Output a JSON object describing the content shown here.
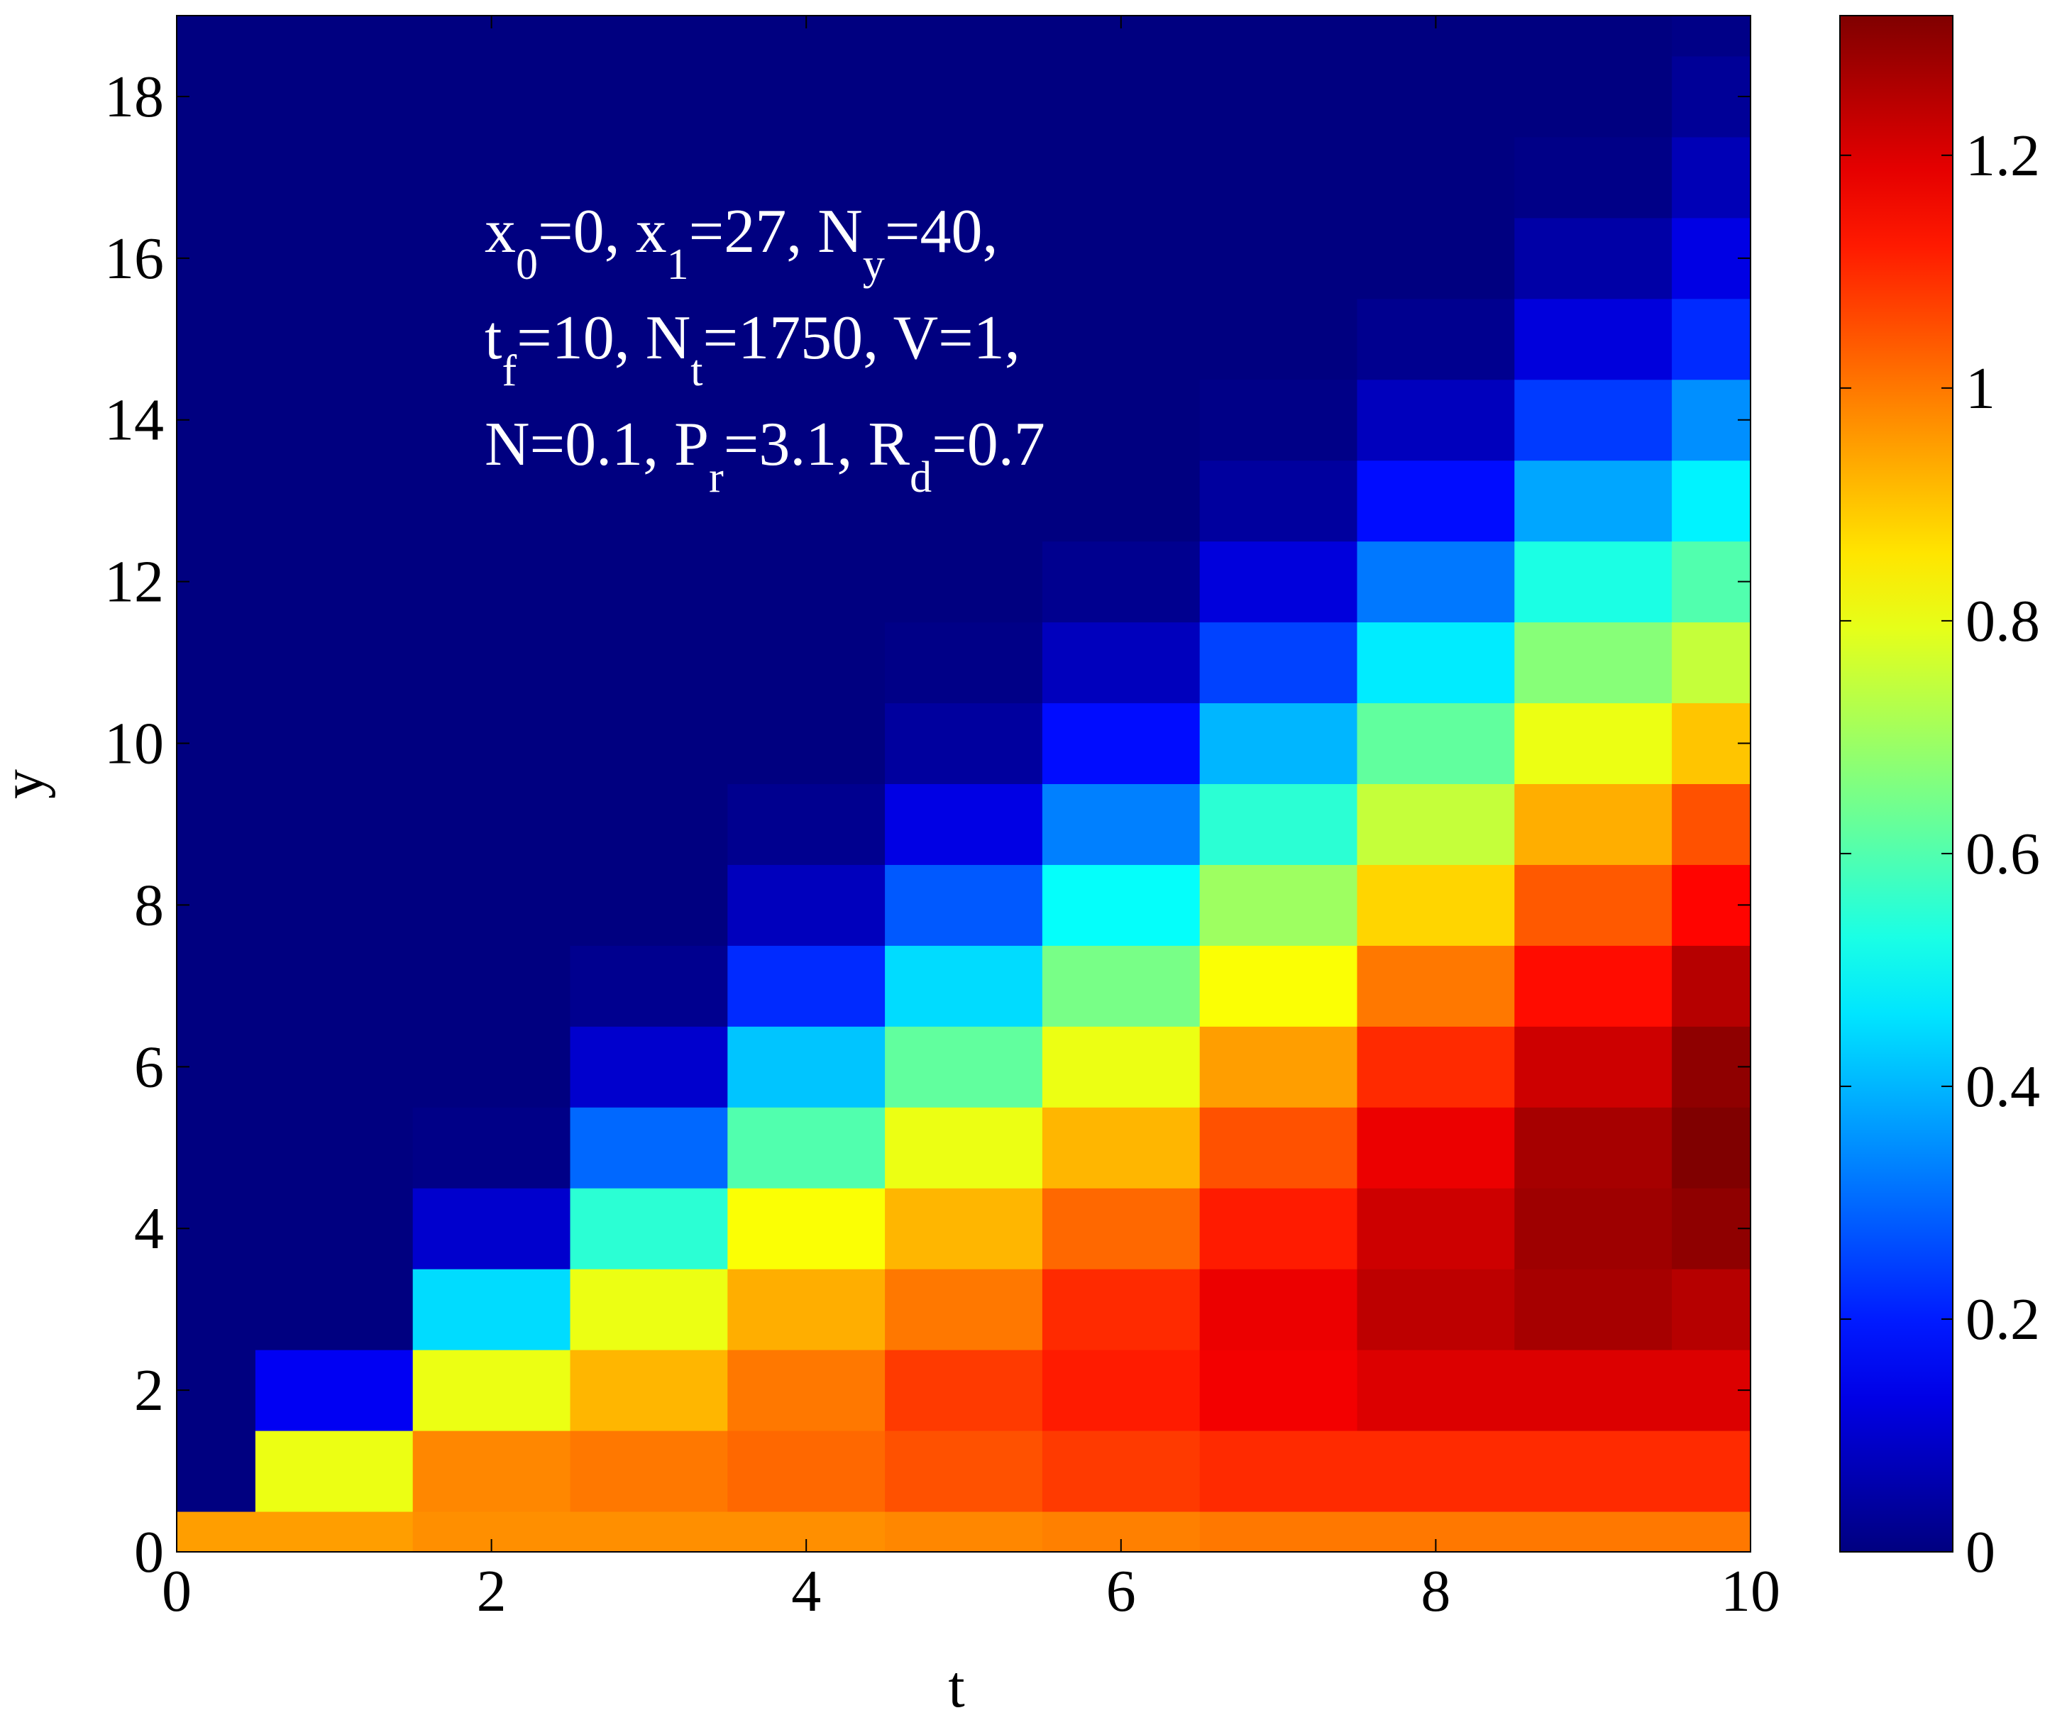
{
  "chart_data": {
    "type": "contourf",
    "xlabel": "t",
    "ylabel": "y",
    "xlim": [
      0,
      10
    ],
    "ylim": [
      0,
      19
    ],
    "xticks": [
      0,
      2,
      4,
      6,
      8,
      10
    ],
    "yticks": [
      0,
      2,
      4,
      6,
      8,
      10,
      12,
      14,
      16,
      18
    ],
    "clim": [
      0,
      1.32
    ],
    "cticks": [
      0,
      0.2,
      0.4,
      0.6,
      0.8,
      1,
      1.2
    ],
    "colormap": "jet",
    "annotation": [
      [
        "x",
        "0",
        "=0, x",
        "1",
        "=27, N",
        "y",
        "=40,"
      ],
      [
        "t",
        "f",
        "=10, N",
        "t",
        "=1750, V=1,"
      ],
      [
        "N=0.1, P",
        "r",
        "=3.1, R",
        "d",
        "=0.7"
      ]
    ],
    "x": [
      0,
      1,
      2,
      3,
      4,
      5,
      6,
      7,
      8,
      9,
      10
    ],
    "y": [
      0,
      1,
      2,
      3,
      4,
      5,
      6,
      7,
      8,
      9,
      10,
      11,
      12,
      13,
      14,
      15,
      16,
      17,
      18,
      19
    ],
    "z": [
      [
        0.95,
        0,
        0,
        0,
        0,
        0,
        0,
        0,
        0,
        0,
        0,
        0,
        0,
        0,
        0,
        0,
        0,
        0,
        0,
        0
      ],
      [
        0.95,
        0.8,
        0.15,
        0,
        0,
        0,
        0,
        0,
        0,
        0,
        0,
        0,
        0,
        0,
        0,
        0,
        0,
        0,
        0,
        0
      ],
      [
        0.97,
        0.98,
        0.8,
        0.45,
        0.1,
        0.01,
        0,
        0,
        0,
        0,
        0,
        0,
        0,
        0,
        0,
        0,
        0,
        0,
        0,
        0
      ],
      [
        0.97,
        1.0,
        0.92,
        0.8,
        0.55,
        0.3,
        0.1,
        0.02,
        0,
        0,
        0,
        0,
        0,
        0,
        0,
        0,
        0,
        0,
        0,
        0
      ],
      [
        0.97,
        1.02,
        1.0,
        0.93,
        0.82,
        0.6,
        0.42,
        0.22,
        0.08,
        0.02,
        0,
        0,
        0,
        0,
        0,
        0,
        0,
        0,
        0,
        0
      ],
      [
        0.98,
        1.05,
        1.08,
        1.0,
        0.92,
        0.8,
        0.62,
        0.45,
        0.28,
        0.13,
        0.04,
        0.01,
        0,
        0,
        0,
        0,
        0,
        0,
        0,
        0
      ],
      [
        0.99,
        1.08,
        1.12,
        1.1,
        1.02,
        0.92,
        0.8,
        0.65,
        0.5,
        0.33,
        0.18,
        0.08,
        0.02,
        0,
        0,
        0,
        0,
        0,
        0,
        0
      ],
      [
        1.0,
        1.1,
        1.17,
        1.18,
        1.12,
        1.05,
        0.95,
        0.82,
        0.7,
        0.55,
        0.4,
        0.25,
        0.12,
        0.04,
        0.01,
        0,
        0,
        0,
        0,
        0
      ],
      [
        1.0,
        1.1,
        1.2,
        1.24,
        1.22,
        1.18,
        1.1,
        1.0,
        0.88,
        0.75,
        0.62,
        0.47,
        0.32,
        0.18,
        0.08,
        0.02,
        0,
        0,
        0,
        0
      ],
      [
        1.0,
        1.1,
        1.2,
        1.27,
        1.28,
        1.27,
        1.22,
        1.14,
        1.04,
        0.93,
        0.8,
        0.67,
        0.53,
        0.38,
        0.24,
        0.12,
        0.05,
        0.01,
        0,
        0
      ],
      [
        1.0,
        1.1,
        1.2,
        1.25,
        1.3,
        1.32,
        1.3,
        1.25,
        1.15,
        1.05,
        0.9,
        0.75,
        0.6,
        0.48,
        0.35,
        0.22,
        0.13,
        0.07,
        0.03,
        0.01
      ]
    ]
  }
}
